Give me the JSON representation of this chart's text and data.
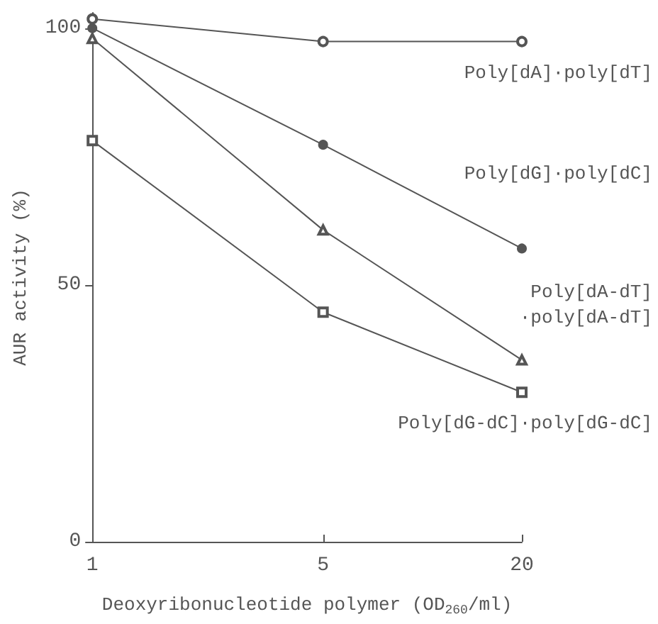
{
  "chart_data": {
    "type": "line",
    "xlabel": "Deoxyribonucleotide polymer (OD$_{260}$/ml)",
    "ylabel": "AUR activity (%)",
    "log": "x",
    "x": [
      1,
      5,
      20
    ],
    "xlim": [
      1,
      20
    ],
    "xticks": [
      1,
      5,
      20
    ],
    "ylim": [
      0,
      103
    ],
    "yticks": [
      0,
      50,
      100
    ],
    "grid": false,
    "legend": false,
    "series": [
      {
        "name": "Poly[dA]·poly[dT]",
        "color": "#555555",
        "marker": "circle",
        "values": [
          101.8,
          97.4,
          97.4
        ]
      },
      {
        "name": "Poly[dG]·poly[dC]",
        "color": "#555555",
        "marker": "circle",
        "values": [
          100,
          77.3,
          57.1
        ]
      },
      {
        "name": "Poly[dA-dT]·poly[dA-dT]",
        "color": "#555555",
        "marker": "triangle",
        "values": [
          98,
          60.7,
          35.4
        ]
      },
      {
        "name": "Poly[dG-dC]·poly[dG-dC]",
        "color": "#555555",
        "marker": "square",
        "values": [
          78.1,
          44.7,
          29.1
        ]
      }
    ]
  }
}
